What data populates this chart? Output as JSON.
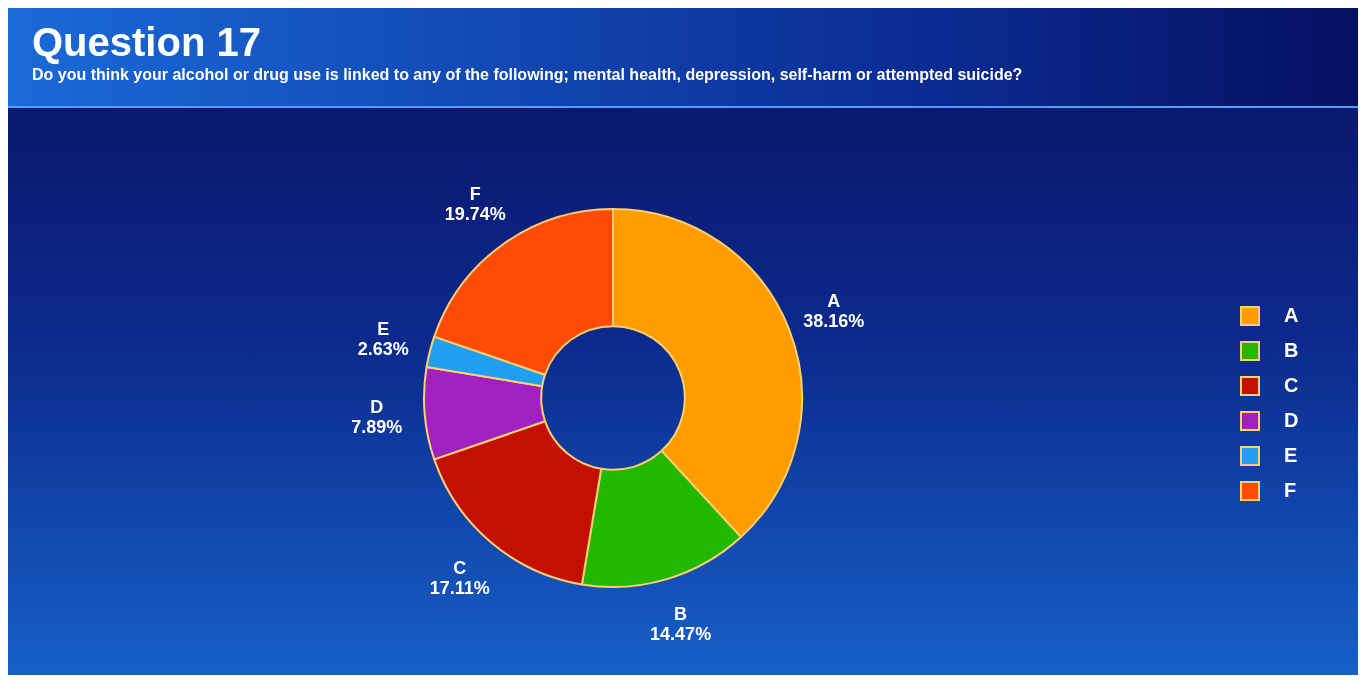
{
  "chart_data": {
    "type": "donut",
    "title": "Question 17",
    "subtitle": "Do you think your alcohol or drug use is linked to any of the following; mental health, depression, self-harm or attempted suicide?",
    "categories": [
      "A",
      "B",
      "C",
      "D",
      "E",
      "F"
    ],
    "values": [
      38.16,
      14.47,
      17.11,
      7.89,
      2.63,
      19.74
    ],
    "value_labels": [
      "38.16%",
      "14.47%",
      "17.11%",
      "7.89%",
      "2.63%",
      "19.74%"
    ],
    "colors": [
      "#ff9c00",
      "#22b800",
      "#c41000",
      "#a020c0",
      "#20a0f0",
      "#ff4a08"
    ],
    "legend": "right"
  }
}
